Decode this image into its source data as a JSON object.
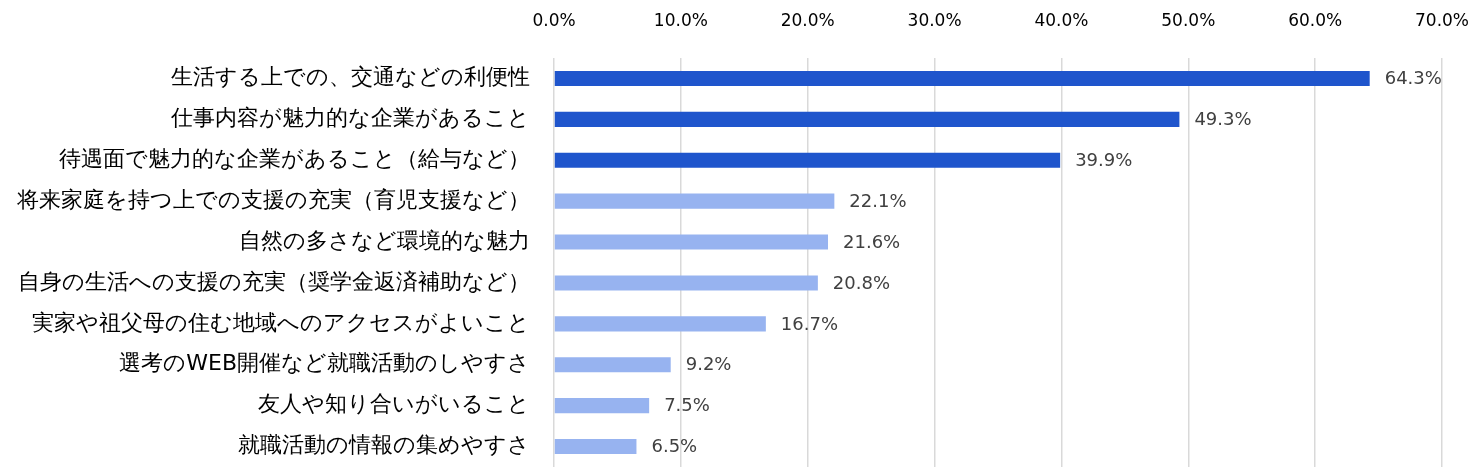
{
  "chart_data": {
    "type": "bar",
    "orientation": "horizontal",
    "categories": [
      "生活する上での、交通などの利便性",
      "仕事内容が魅力的な企業があること",
      "待遇面で魅力的な企業があること（給与など）",
      "将来家庭を持つ上での支援の充実（育児支援など）",
      "自然の多さなど環境的な魅力",
      "自身の生活への支援の充実（奨学金返済補助など）",
      "実家や祖父母の住む地域へのアクセスがよいこと",
      "選考のWEB開催など就職活動のしやすさ",
      "友人や知り合いがいること",
      "就職活動の情報の集めやすさ"
    ],
    "values": [
      64.3,
      49.3,
      39.9,
      22.1,
      21.6,
      20.8,
      16.7,
      9.2,
      7.5,
      6.5
    ],
    "colors": [
      "#1f55cc",
      "#1f55cc",
      "#1f55cc",
      "#97b3f0",
      "#97b3f0",
      "#97b3f0",
      "#97b3f0",
      "#97b3f0",
      "#97b3f0",
      "#97b3f0"
    ],
    "value_labels": [
      "64.3%",
      "49.3%",
      "39.9%",
      "22.1%",
      "21.6%",
      "20.8%",
      "16.7%",
      "9.2%",
      "7.5%",
      "6.5%"
    ],
    "xlim": [
      0,
      70
    ],
    "xticks": [
      {
        "value": 0,
        "label": "0.0%"
      },
      {
        "value": 10,
        "label": "10.0%"
      },
      {
        "value": 20,
        "label": "20.0%"
      },
      {
        "value": 30,
        "label": "30.0%"
      },
      {
        "value": 40,
        "label": "40.0%"
      },
      {
        "value": 50,
        "label": "50.0%"
      },
      {
        "value": 60,
        "label": "60.0%"
      },
      {
        "value": 70,
        "label": "70.0%"
      }
    ],
    "grid": "x"
  }
}
